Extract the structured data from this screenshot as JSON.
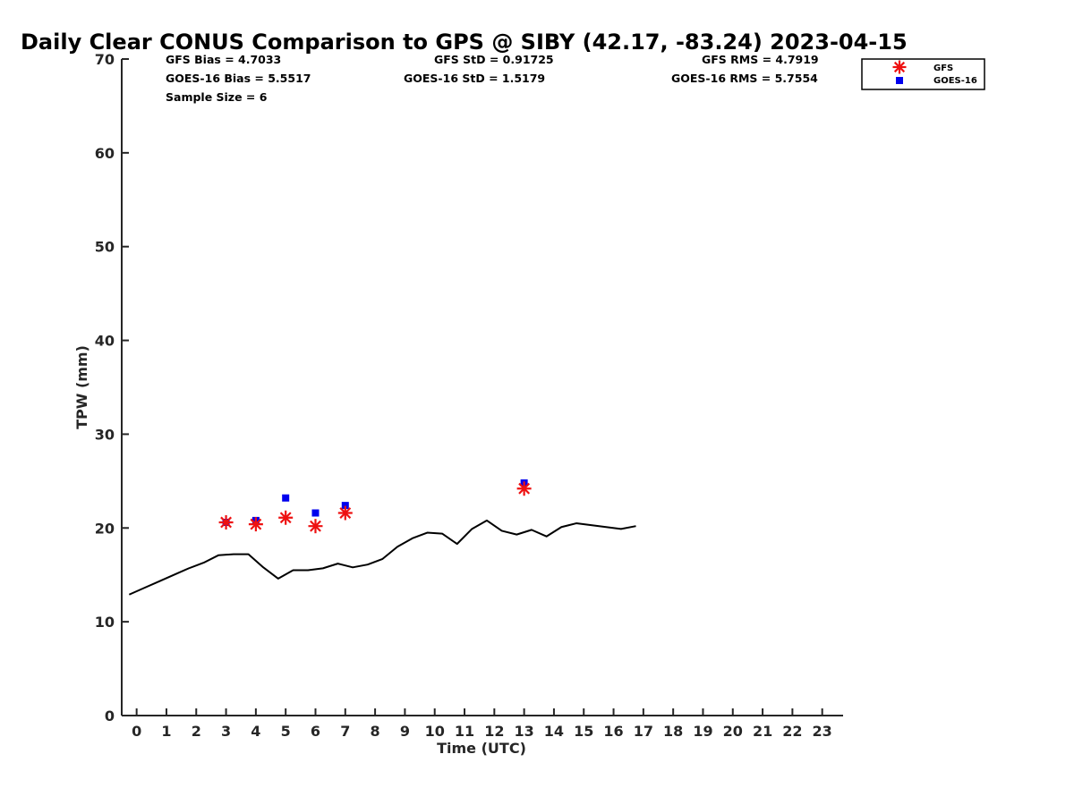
{
  "chart_data": {
    "type": "line",
    "title": "Daily Clear CONUS Comparison to GPS @ SIBY (42.17, -83.24) 2023-04-15",
    "xlabel": "Time (UTC)",
    "ylabel": "TPW (mm)",
    "xlim": [
      -0.5,
      23.7
    ],
    "ylim": [
      0,
      70
    ],
    "x_ticks": [
      "0",
      "1",
      "2",
      "3",
      "4",
      "5",
      "6",
      "7",
      "8",
      "9",
      "10",
      "11",
      "12",
      "13",
      "14",
      "15",
      "16",
      "17",
      "18",
      "19",
      "20",
      "21",
      "22",
      "23"
    ],
    "y_ticks": [
      "0",
      "10",
      "20",
      "30",
      "40",
      "50",
      "60",
      "70"
    ],
    "grid": false,
    "legend_position": "top-right",
    "stats": {
      "gfs_bias": "GFS Bias = 4.7033",
      "goes_bias": "GOES-16 Bias = 5.5517",
      "sample_size": "Sample Size = 6",
      "gfs_std": "GFS StD = 0.91725",
      "goes_std": "GOES-16 StD = 1.5179",
      "gfs_rms": "GFS RMS = 4.7919",
      "goes_rms": "GOES-16 RMS = 5.7554"
    },
    "series": [
      {
        "style": "line",
        "color": "#000000",
        "x": [
          -0.25,
          0.25,
          0.75,
          1.25,
          1.75,
          2.25,
          2.75,
          3.25,
          3.75,
          4.25,
          4.75,
          5.25,
          5.75,
          6.25,
          6.75,
          7.25,
          7.75,
          8.25,
          8.75,
          9.25,
          9.75,
          10.25,
          10.75,
          11.25,
          11.75,
          12.25,
          12.75,
          13.25,
          13.75,
          14.25,
          14.75,
          15.25,
          15.75,
          16.25,
          16.75
        ],
        "y": [
          12.9,
          13.6,
          14.3,
          15.0,
          15.7,
          16.3,
          17.1,
          17.2,
          17.2,
          15.8,
          14.6,
          15.5,
          15.5,
          15.7,
          16.2,
          15.8,
          16.1,
          16.7,
          18.0,
          18.9,
          19.5,
          19.4,
          18.3,
          19.9,
          20.8,
          19.7,
          19.3,
          19.8,
          19.1,
          20.1,
          20.5,
          20.3,
          20.1,
          19.9,
          20.2
        ]
      },
      {
        "name": "GFS",
        "style": "marker-asterisk",
        "color": "#ee1111",
        "x": [
          3,
          4,
          5,
          6,
          7,
          13
        ],
        "y": [
          20.6,
          20.4,
          21.1,
          20.2,
          21.6,
          24.2
        ]
      },
      {
        "name": "GOES-16",
        "style": "marker-square",
        "color": "#0000ee",
        "x": [
          3,
          4,
          5,
          6,
          7,
          13
        ],
        "y": [
          20.6,
          20.8,
          23.2,
          21.6,
          22.4,
          24.8
        ]
      }
    ]
  }
}
